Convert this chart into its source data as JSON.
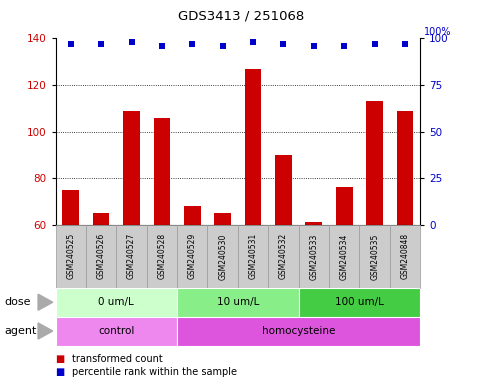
{
  "title": "GDS3413 / 251068",
  "samples": [
    "GSM240525",
    "GSM240526",
    "GSM240527",
    "GSM240528",
    "GSM240529",
    "GSM240530",
    "GSM240531",
    "GSM240532",
    "GSM240533",
    "GSM240534",
    "GSM240535",
    "GSM240848"
  ],
  "transformed_count": [
    75,
    65,
    109,
    106,
    68,
    65,
    127,
    90,
    61,
    76,
    113,
    109
  ],
  "percentile_rank": [
    97,
    97,
    98,
    96,
    97,
    96,
    98,
    97,
    96,
    96,
    97,
    97
  ],
  "ylim_left": [
    60,
    140
  ],
  "ylim_right": [
    0,
    100
  ],
  "yticks_left": [
    60,
    80,
    100,
    120,
    140
  ],
  "yticks_right": [
    0,
    25,
    50,
    75,
    100
  ],
  "bar_color": "#cc0000",
  "dot_color": "#0000cc",
  "dose_groups": [
    {
      "label": "0 um/L",
      "start": 0,
      "end": 4,
      "color": "#ccffcc"
    },
    {
      "label": "10 um/L",
      "start": 4,
      "end": 8,
      "color": "#88ee88"
    },
    {
      "label": "100 um/L",
      "start": 8,
      "end": 12,
      "color": "#44cc44"
    }
  ],
  "agent_groups": [
    {
      "label": "control",
      "start": 0,
      "end": 4,
      "color": "#ee88ee"
    },
    {
      "label": "homocysteine",
      "start": 4,
      "end": 12,
      "color": "#dd55dd"
    }
  ],
  "dose_label": "dose",
  "agent_label": "agent",
  "legend_items": [
    {
      "color": "#cc0000",
      "label": "transformed count"
    },
    {
      "color": "#0000cc",
      "label": "percentile rank within the sample"
    }
  ],
  "tick_label_color_left": "#cc0000",
  "tick_label_color_right": "#0000cc",
  "sample_box_color": "#cccccc",
  "sample_box_edge": "#999999"
}
